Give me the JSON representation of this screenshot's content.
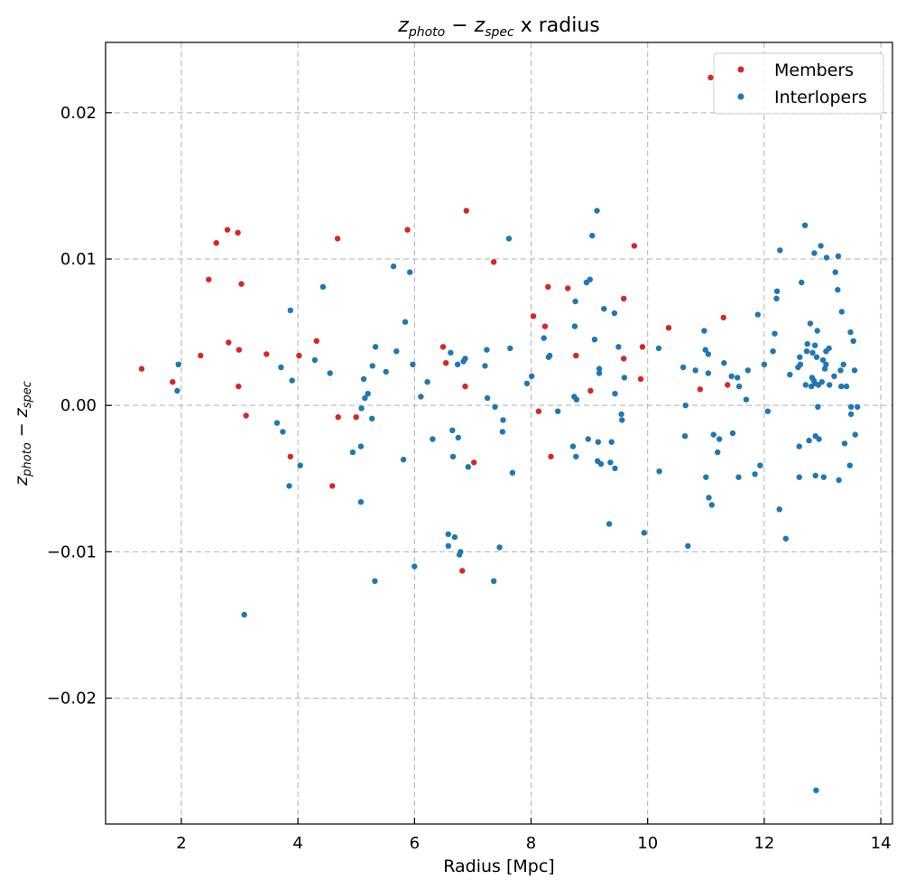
{
  "chart_data": {
    "type": "scatter",
    "title": "z_photo − z_spec x radius",
    "title_parts": {
      "a": "z",
      "a_sub": "photo",
      "op": " − ",
      "b": "z",
      "b_sub": "spec",
      "tail": " x radius"
    },
    "xlabel": "Radius [Mpc]",
    "ylabel_parts": {
      "a": "z",
      "a_sub": "photo",
      "op": " − ",
      "b": "z",
      "b_sub": "spec"
    },
    "xlim": [
      0.7,
      14.2
    ],
    "ylim": [
      -0.0286,
      0.0248
    ],
    "xticks": [
      2,
      4,
      6,
      8,
      10,
      12,
      14
    ],
    "xtick_labels": [
      "2",
      "4",
      "6",
      "8",
      "10",
      "12",
      "14"
    ],
    "yticks": [
      -0.02,
      -0.01,
      0.0,
      0.01,
      0.02
    ],
    "ytick_labels": [
      "−0.02",
      "−0.01",
      "0.00",
      "0.01",
      "0.02"
    ],
    "grid": true,
    "legend_position": "top-right",
    "series": [
      {
        "name": "Members",
        "color": "#d62728",
        "points": [
          [
            1.32,
            0.0025
          ],
          [
            1.85,
            0.0016
          ],
          [
            2.33,
            0.0034
          ],
          [
            2.47,
            0.0086
          ],
          [
            2.6,
            0.0111
          ],
          [
            2.79,
            0.012
          ],
          [
            2.81,
            0.0043
          ],
          [
            2.97,
            0.0118
          ],
          [
            2.98,
            0.0013
          ],
          [
            2.99,
            0.0038
          ],
          [
            3.03,
            0.0083
          ],
          [
            3.11,
            -0.0007
          ],
          [
            3.46,
            0.0035
          ],
          [
            3.87,
            -0.0035
          ],
          [
            4.02,
            0.0034
          ],
          [
            4.32,
            0.0044
          ],
          [
            4.59,
            -0.0055
          ],
          [
            4.68,
            0.0114
          ],
          [
            4.69,
            -0.0008
          ],
          [
            5.0,
            -0.0008
          ],
          [
            5.88,
            0.012
          ],
          [
            6.49,
            0.004
          ],
          [
            6.54,
            0.0029
          ],
          [
            6.82,
            -0.0113
          ],
          [
            6.87,
            0.0013
          ],
          [
            6.89,
            0.0133
          ],
          [
            7.02,
            -0.0039
          ],
          [
            7.36,
            0.0098
          ],
          [
            8.04,
            0.0061
          ],
          [
            8.13,
            -0.0004
          ],
          [
            8.24,
            0.0054
          ],
          [
            8.29,
            0.0081
          ],
          [
            8.34,
            -0.0035
          ],
          [
            8.63,
            0.008
          ],
          [
            8.77,
            0.0034
          ],
          [
            9.02,
            0.001
          ],
          [
            9.59,
            0.0032
          ],
          [
            9.59,
            0.0073
          ],
          [
            9.77,
            0.0109
          ],
          [
            9.88,
            0.0018
          ],
          [
            9.91,
            0.004
          ],
          [
            10.36,
            0.0053
          ],
          [
            10.9,
            0.0011
          ],
          [
            11.08,
            0.0224
          ],
          [
            11.3,
            0.006
          ],
          [
            11.37,
            0.0014
          ]
        ]
      },
      {
        "name": "Interlopers",
        "color": "#1f77b4",
        "points": [
          [
            1.93,
            0.001
          ],
          [
            1.95,
            0.0028
          ],
          [
            3.08,
            -0.0143
          ],
          [
            3.64,
            -0.0012
          ],
          [
            3.71,
            0.0026
          ],
          [
            3.74,
            -0.0018
          ],
          [
            3.85,
            -0.0055
          ],
          [
            3.87,
            0.0065
          ],
          [
            3.9,
            0.0017
          ],
          [
            4.04,
            -0.0041
          ],
          [
            4.29,
            0.0031
          ],
          [
            4.43,
            0.0081
          ],
          [
            4.55,
            0.0022
          ],
          [
            4.94,
            -0.0032
          ],
          [
            5.08,
            -0.0028
          ],
          [
            5.08,
            -0.0066
          ],
          [
            5.09,
            -0.0002
          ],
          [
            5.13,
            0.0018
          ],
          [
            5.15,
            0.0005
          ],
          [
            5.2,
            0.0008
          ],
          [
            5.27,
            -0.0009
          ],
          [
            5.28,
            0.0027
          ],
          [
            5.32,
            -0.012
          ],
          [
            5.33,
            0.004
          ],
          [
            5.51,
            0.0023
          ],
          [
            5.64,
            0.0095
          ],
          [
            5.69,
            0.0037
          ],
          [
            5.81,
            -0.0037
          ],
          [
            5.84,
            0.0057
          ],
          [
            5.92,
            0.0091
          ],
          [
            5.97,
            0.0028
          ],
          [
            6.0,
            -0.011
          ],
          [
            6.11,
            0.0006
          ],
          [
            6.22,
            0.0016
          ],
          [
            6.31,
            -0.0023
          ],
          [
            6.58,
            -0.0088
          ],
          [
            6.58,
            -0.0096
          ],
          [
            6.62,
            0.0036
          ],
          [
            6.65,
            -0.0017
          ],
          [
            6.66,
            -0.0035
          ],
          [
            6.69,
            -0.009
          ],
          [
            6.74,
            0.0028
          ],
          [
            6.75,
            -0.0022
          ],
          [
            6.77,
            -0.0102
          ],
          [
            6.79,
            -0.01
          ],
          [
            6.84,
            0.003
          ],
          [
            6.87,
            0.0032
          ],
          [
            6.92,
            -0.0042
          ],
          [
            7.21,
            0.0027
          ],
          [
            7.24,
            0.0038
          ],
          [
            7.25,
            0.0005
          ],
          [
            7.36,
            -0.012
          ],
          [
            7.38,
            -0.0001
          ],
          [
            7.46,
            -0.0097
          ],
          [
            7.51,
            -0.0018
          ],
          [
            7.52,
            -0.001
          ],
          [
            7.62,
            0.0114
          ],
          [
            7.64,
            0.0039
          ],
          [
            7.68,
            -0.0046
          ],
          [
            7.93,
            0.0015
          ],
          [
            8.01,
            0.002
          ],
          [
            8.22,
            0.0046
          ],
          [
            8.3,
            0.0033
          ],
          [
            8.32,
            0.0034
          ],
          [
            8.46,
            -0.0004
          ],
          [
            8.72,
            -0.0028
          ],
          [
            8.74,
            0.0006
          ],
          [
            8.75,
            0.0054
          ],
          [
            8.76,
            0.0071
          ],
          [
            8.77,
            -0.0035
          ],
          [
            8.78,
            0.0004
          ],
          [
            8.95,
            0.0084
          ],
          [
            8.98,
            -0.0023
          ],
          [
            9.01,
            0.0086
          ],
          [
            9.05,
            0.0116
          ],
          [
            9.09,
            0.0045
          ],
          [
            9.13,
            0.0133
          ],
          [
            9.14,
            -0.0038
          ],
          [
            9.15,
            -0.0025
          ],
          [
            9.17,
            0.0025
          ],
          [
            9.17,
            0.0022
          ],
          [
            9.2,
            -0.004
          ],
          [
            9.25,
            0.0066
          ],
          [
            9.34,
            -0.0081
          ],
          [
            9.36,
            -0.0039
          ],
          [
            9.38,
            -0.0025
          ],
          [
            9.43,
            0.0063
          ],
          [
            9.44,
            0.0008
          ],
          [
            9.44,
            -0.0043
          ],
          [
            9.5,
            0.004
          ],
          [
            9.55,
            -0.0006
          ],
          [
            9.56,
            -0.001
          ],
          [
            9.6,
            0.0019
          ],
          [
            9.94,
            -0.0087
          ],
          [
            10.19,
            0.0039
          ],
          [
            10.2,
            -0.0045
          ],
          [
            10.61,
            0.0026
          ],
          [
            10.64,
            -0.0021
          ],
          [
            10.65,
            0.0
          ],
          [
            10.69,
            -0.0096
          ],
          [
            10.82,
            0.0024
          ],
          [
            10.97,
            0.0051
          ],
          [
            10.99,
            0.0038
          ],
          [
            11.0,
            -0.0049
          ],
          [
            11.04,
            0.0035
          ],
          [
            11.04,
            0.0022
          ],
          [
            11.05,
            -0.0063
          ],
          [
            11.1,
            -0.0068
          ],
          [
            11.13,
            -0.002
          ],
          [
            11.2,
            -0.0032
          ],
          [
            11.23,
            -0.0023
          ],
          [
            11.31,
            0.0029
          ],
          [
            11.44,
            0.002
          ],
          [
            11.46,
            -0.0019
          ],
          [
            11.54,
            0.0019
          ],
          [
            11.56,
            -0.0049
          ],
          [
            11.57,
            0.0013
          ],
          [
            11.69,
            0.0004
          ],
          [
            11.72,
            0.0024
          ],
          [
            11.84,
            -0.0047
          ],
          [
            11.89,
            0.0062
          ],
          [
            11.93,
            -0.0041
          ],
          [
            12.0,
            0.0028
          ],
          [
            12.06,
            -0.0004
          ],
          [
            12.15,
            0.0037
          ],
          [
            12.18,
            0.0049
          ],
          [
            12.21,
            0.0073
          ],
          [
            12.22,
            0.0078
          ],
          [
            12.26,
            -0.0071
          ],
          [
            12.27,
            0.0106
          ],
          [
            12.37,
            -0.0091
          ],
          [
            12.44,
            0.0021
          ],
          [
            12.58,
            0.0026
          ],
          [
            12.6,
            -0.0028
          ],
          [
            12.6,
            -0.0049
          ],
          [
            12.61,
            0.0033
          ],
          [
            12.62,
            0.0028
          ],
          [
            12.64,
            0.0084
          ],
          [
            12.7,
            0.0123
          ],
          [
            12.71,
            0.0014
          ],
          [
            12.73,
            0.0037
          ],
          [
            12.74,
            0.0042
          ],
          [
            12.77,
            -0.0024
          ],
          [
            12.79,
            0.0056
          ],
          [
            12.81,
            0.0013
          ],
          [
            12.82,
            0.0019
          ],
          [
            12.83,
            0.0036
          ],
          [
            12.85,
            0.0017
          ],
          [
            12.86,
            0.0104
          ],
          [
            12.87,
            0.0015
          ],
          [
            12.87,
            0.0041
          ],
          [
            12.88,
            -0.0048
          ],
          [
            12.88,
            -0.0021
          ],
          [
            12.89,
            -0.0263
          ],
          [
            12.9,
            0.0033
          ],
          [
            12.91,
            0.0051
          ],
          [
            12.92,
            -0.0001
          ],
          [
            12.93,
            0.0014
          ],
          [
            12.94,
            -0.0023
          ],
          [
            12.97,
            0.0109
          ],
          [
            12.99,
            0.0016
          ],
          [
            13.01,
            0.0031
          ],
          [
            13.02,
            -0.0049
          ],
          [
            13.04,
            0.0025
          ],
          [
            13.06,
            0.0028
          ],
          [
            13.06,
            0.0037
          ],
          [
            13.07,
            0.0101
          ],
          [
            13.11,
            0.0039
          ],
          [
            13.12,
            0.0014
          ],
          [
            13.2,
            0.002
          ],
          [
            13.22,
            0.0091
          ],
          [
            13.26,
            0.0079
          ],
          [
            13.27,
            0.0102
          ],
          [
            13.28,
            -0.0051
          ],
          [
            13.31,
            0.0024
          ],
          [
            13.32,
            0.0013
          ],
          [
            13.33,
            0.0064
          ],
          [
            13.36,
            0.0028
          ],
          [
            13.38,
            -0.0026
          ],
          [
            13.41,
            0.0013
          ],
          [
            13.47,
            -0.0041
          ],
          [
            13.48,
            0.005
          ],
          [
            13.49,
            -0.0001
          ],
          [
            13.49,
            -0.0006
          ],
          [
            13.53,
            0.0044
          ],
          [
            13.55,
            0.0024
          ],
          [
            13.56,
            -0.002
          ],
          [
            13.6,
            -0.0001
          ]
        ]
      }
    ]
  }
}
